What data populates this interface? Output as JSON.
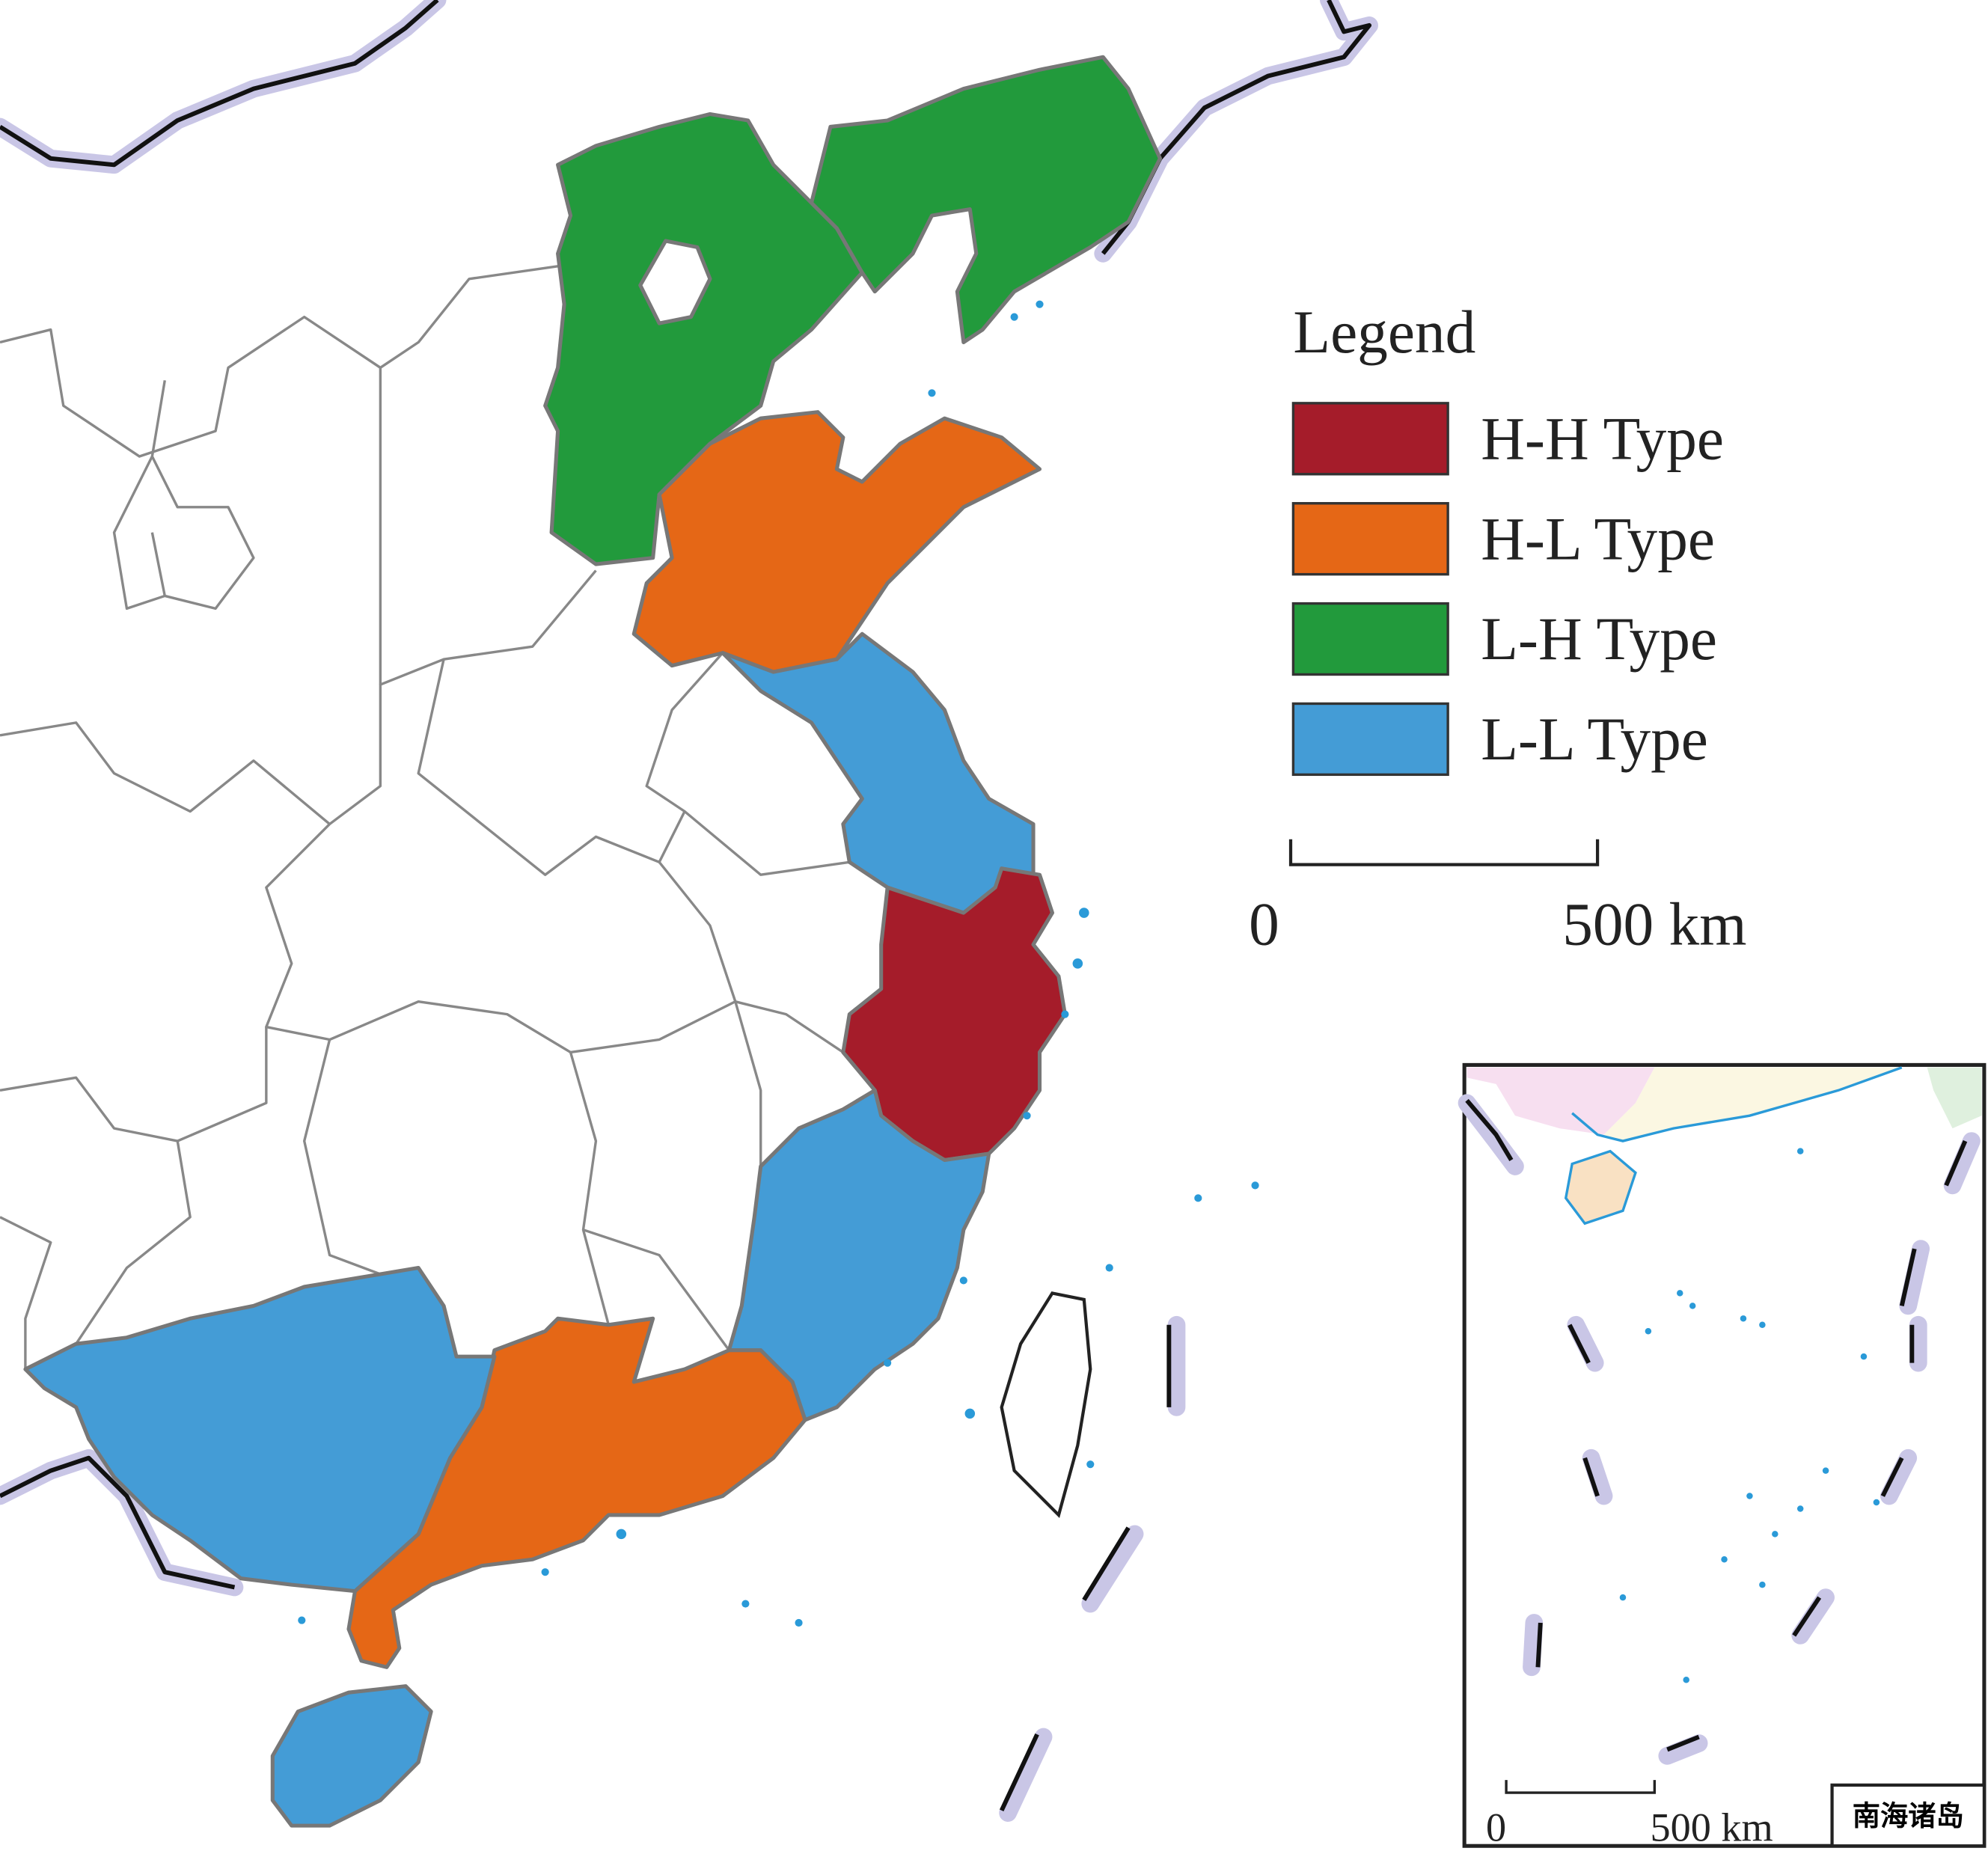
{
  "legend": {
    "title": "Legend",
    "items": [
      {
        "label": "H-H Type",
        "color": "#a51c2a"
      },
      {
        "label": "H-L Type",
        "color": "#e56716"
      },
      {
        "label": "L-H Type",
        "color": "#229a3c"
      },
      {
        "label": "L-L Type",
        "color": "#449cd6"
      }
    ]
  },
  "scale_bar": {
    "start": "0",
    "end": "500 km"
  },
  "inset": {
    "scale_bar": {
      "start": "0",
      "end": "500 km"
    },
    "label": "南海诸岛"
  }
}
